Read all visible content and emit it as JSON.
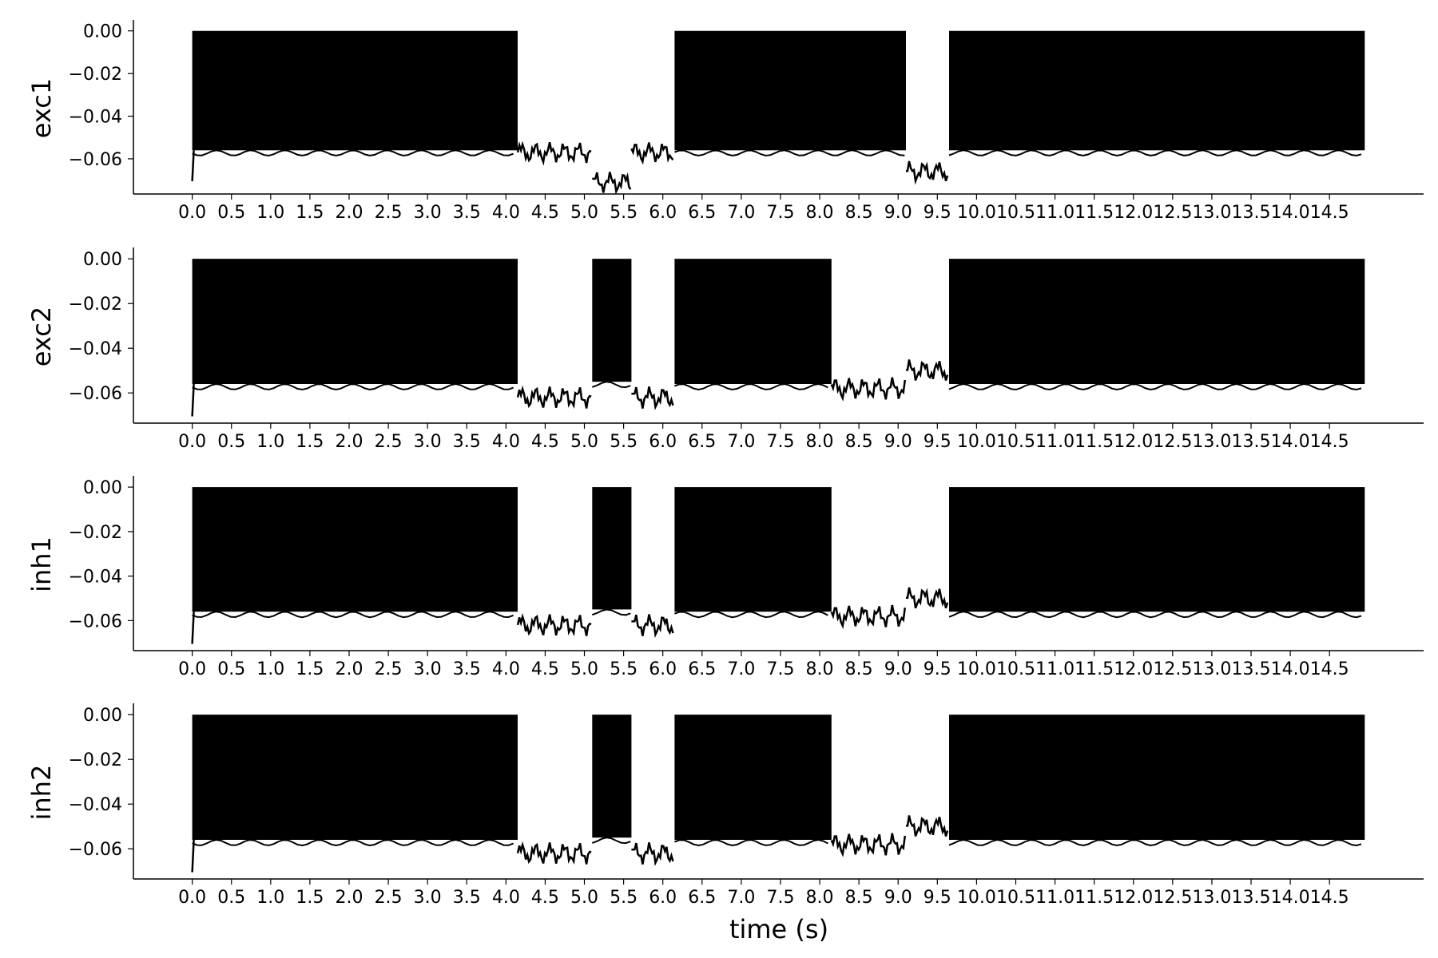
{
  "figure": {
    "xlabel": "time (s)",
    "x_tick_labels": [
      "0.0",
      "0.5",
      "1.0",
      "1.5",
      "2.0",
      "2.5",
      "3.0",
      "3.5",
      "4.0",
      "4.5",
      "5.0",
      "5.5",
      "6.0",
      "6.5",
      "7.0",
      "7.5",
      "8.0",
      "8.5",
      "9.0",
      "9.5",
      "10.0",
      "10.5",
      "11.0",
      "11.5",
      "12.0",
      "12.5",
      "13.0",
      "13.5",
      "14.0",
      "14.5"
    ],
    "y_tick_labels": [
      "0.00",
      "−0.02",
      "−0.04",
      "−0.06"
    ]
  },
  "chart_data": [
    {
      "type": "line",
      "ylabel": "exc1",
      "xlim": [
        -0.75,
        15.7
      ],
      "ylim": [
        -0.0765,
        0.004
      ],
      "x_ticks": [
        0,
        0.5,
        1,
        1.5,
        2,
        2.5,
        3,
        3.5,
        4,
        4.5,
        5,
        5.5,
        6,
        6.5,
        7,
        7.5,
        8,
        8.5,
        9,
        9.5,
        10,
        10.5,
        11,
        11.5,
        12,
        12.5,
        13,
        13.5,
        14,
        14.5
      ],
      "y_ticks": [
        0,
        -0.02,
        -0.04,
        -0.06
      ],
      "line_color": "#000000",
      "spiking_segments": [
        {
          "start": 0.0,
          "end": 4.15,
          "trough": -0.056
        },
        {
          "start": 6.15,
          "end": 9.1,
          "trough": -0.056
        },
        {
          "start": 9.65,
          "end": 14.95,
          "trough": -0.056
        }
      ],
      "subthreshold_segments": [
        {
          "start": 4.15,
          "end": 5.1,
          "level": -0.057
        },
        {
          "start": 5.1,
          "end": 5.6,
          "level": -0.071
        },
        {
          "start": 5.6,
          "end": 6.15,
          "level": -0.057
        },
        {
          "start": 9.1,
          "end": 9.65,
          "level": -0.066
        }
      ]
    },
    {
      "type": "line",
      "ylabel": "exc2",
      "xlim": [
        -0.75,
        15.7
      ],
      "ylim": [
        -0.0735,
        0.004
      ],
      "x_ticks": [
        0,
        0.5,
        1,
        1.5,
        2,
        2.5,
        3,
        3.5,
        4,
        4.5,
        5,
        5.5,
        6,
        6.5,
        7,
        7.5,
        8,
        8.5,
        9,
        9.5,
        10,
        10.5,
        11,
        11.5,
        12,
        12.5,
        13,
        13.5,
        14,
        14.5
      ],
      "y_ticks": [
        0,
        -0.02,
        -0.04,
        -0.06
      ],
      "line_color": "#000000",
      "spiking_segments": [
        {
          "start": 0.0,
          "end": 4.15,
          "trough": -0.056
        },
        {
          "start": 5.1,
          "end": 5.6,
          "trough": -0.055
        },
        {
          "start": 6.15,
          "end": 8.15,
          "trough": -0.056
        },
        {
          "start": 9.65,
          "end": 14.95,
          "trough": -0.056
        }
      ],
      "subthreshold_segments": [
        {
          "start": 4.15,
          "end": 5.1,
          "level": -0.062
        },
        {
          "start": 5.6,
          "end": 6.15,
          "level": -0.062
        },
        {
          "start": 8.15,
          "end": 9.1,
          "level": -0.058
        },
        {
          "start": 9.1,
          "end": 9.65,
          "level": -0.05
        }
      ]
    },
    {
      "type": "line",
      "ylabel": "inh1",
      "xlim": [
        -0.75,
        15.7
      ],
      "ylim": [
        -0.0735,
        0.004
      ],
      "x_ticks": [
        0,
        0.5,
        1,
        1.5,
        2,
        2.5,
        3,
        3.5,
        4,
        4.5,
        5,
        5.5,
        6,
        6.5,
        7,
        7.5,
        8,
        8.5,
        9,
        9.5,
        10,
        10.5,
        11,
        11.5,
        12,
        12.5,
        13,
        13.5,
        14,
        14.5
      ],
      "y_ticks": [
        0,
        -0.02,
        -0.04,
        -0.06
      ],
      "line_color": "#000000",
      "spiking_segments": [
        {
          "start": 0.0,
          "end": 4.15,
          "trough": -0.056
        },
        {
          "start": 5.1,
          "end": 5.6,
          "trough": -0.055
        },
        {
          "start": 6.15,
          "end": 8.15,
          "trough": -0.056
        },
        {
          "start": 9.65,
          "end": 14.95,
          "trough": -0.056
        }
      ],
      "subthreshold_segments": [
        {
          "start": 4.15,
          "end": 5.1,
          "level": -0.062
        },
        {
          "start": 5.6,
          "end": 6.15,
          "level": -0.062
        },
        {
          "start": 8.15,
          "end": 9.1,
          "level": -0.058
        },
        {
          "start": 9.1,
          "end": 9.65,
          "level": -0.05
        }
      ]
    },
    {
      "type": "line",
      "ylabel": "inh2",
      "xlim": [
        -0.75,
        15.7
      ],
      "ylim": [
        -0.0735,
        0.004
      ],
      "x_ticks": [
        0,
        0.5,
        1,
        1.5,
        2,
        2.5,
        3,
        3.5,
        4,
        4.5,
        5,
        5.5,
        6,
        6.5,
        7,
        7.5,
        8,
        8.5,
        9,
        9.5,
        10,
        10.5,
        11,
        11.5,
        12,
        12.5,
        13,
        13.5,
        14,
        14.5
      ],
      "y_ticks": [
        0,
        -0.02,
        -0.04,
        -0.06
      ],
      "line_color": "#000000",
      "spiking_segments": [
        {
          "start": 0.0,
          "end": 4.15,
          "trough": -0.056
        },
        {
          "start": 5.1,
          "end": 5.6,
          "trough": -0.055
        },
        {
          "start": 6.15,
          "end": 8.15,
          "trough": -0.056
        },
        {
          "start": 9.65,
          "end": 14.95,
          "trough": -0.056
        }
      ],
      "subthreshold_segments": [
        {
          "start": 4.15,
          "end": 5.1,
          "level": -0.062
        },
        {
          "start": 5.6,
          "end": 6.15,
          "level": -0.062
        },
        {
          "start": 8.15,
          "end": 9.1,
          "level": -0.058
        },
        {
          "start": 9.1,
          "end": 9.65,
          "level": -0.05
        }
      ]
    }
  ]
}
